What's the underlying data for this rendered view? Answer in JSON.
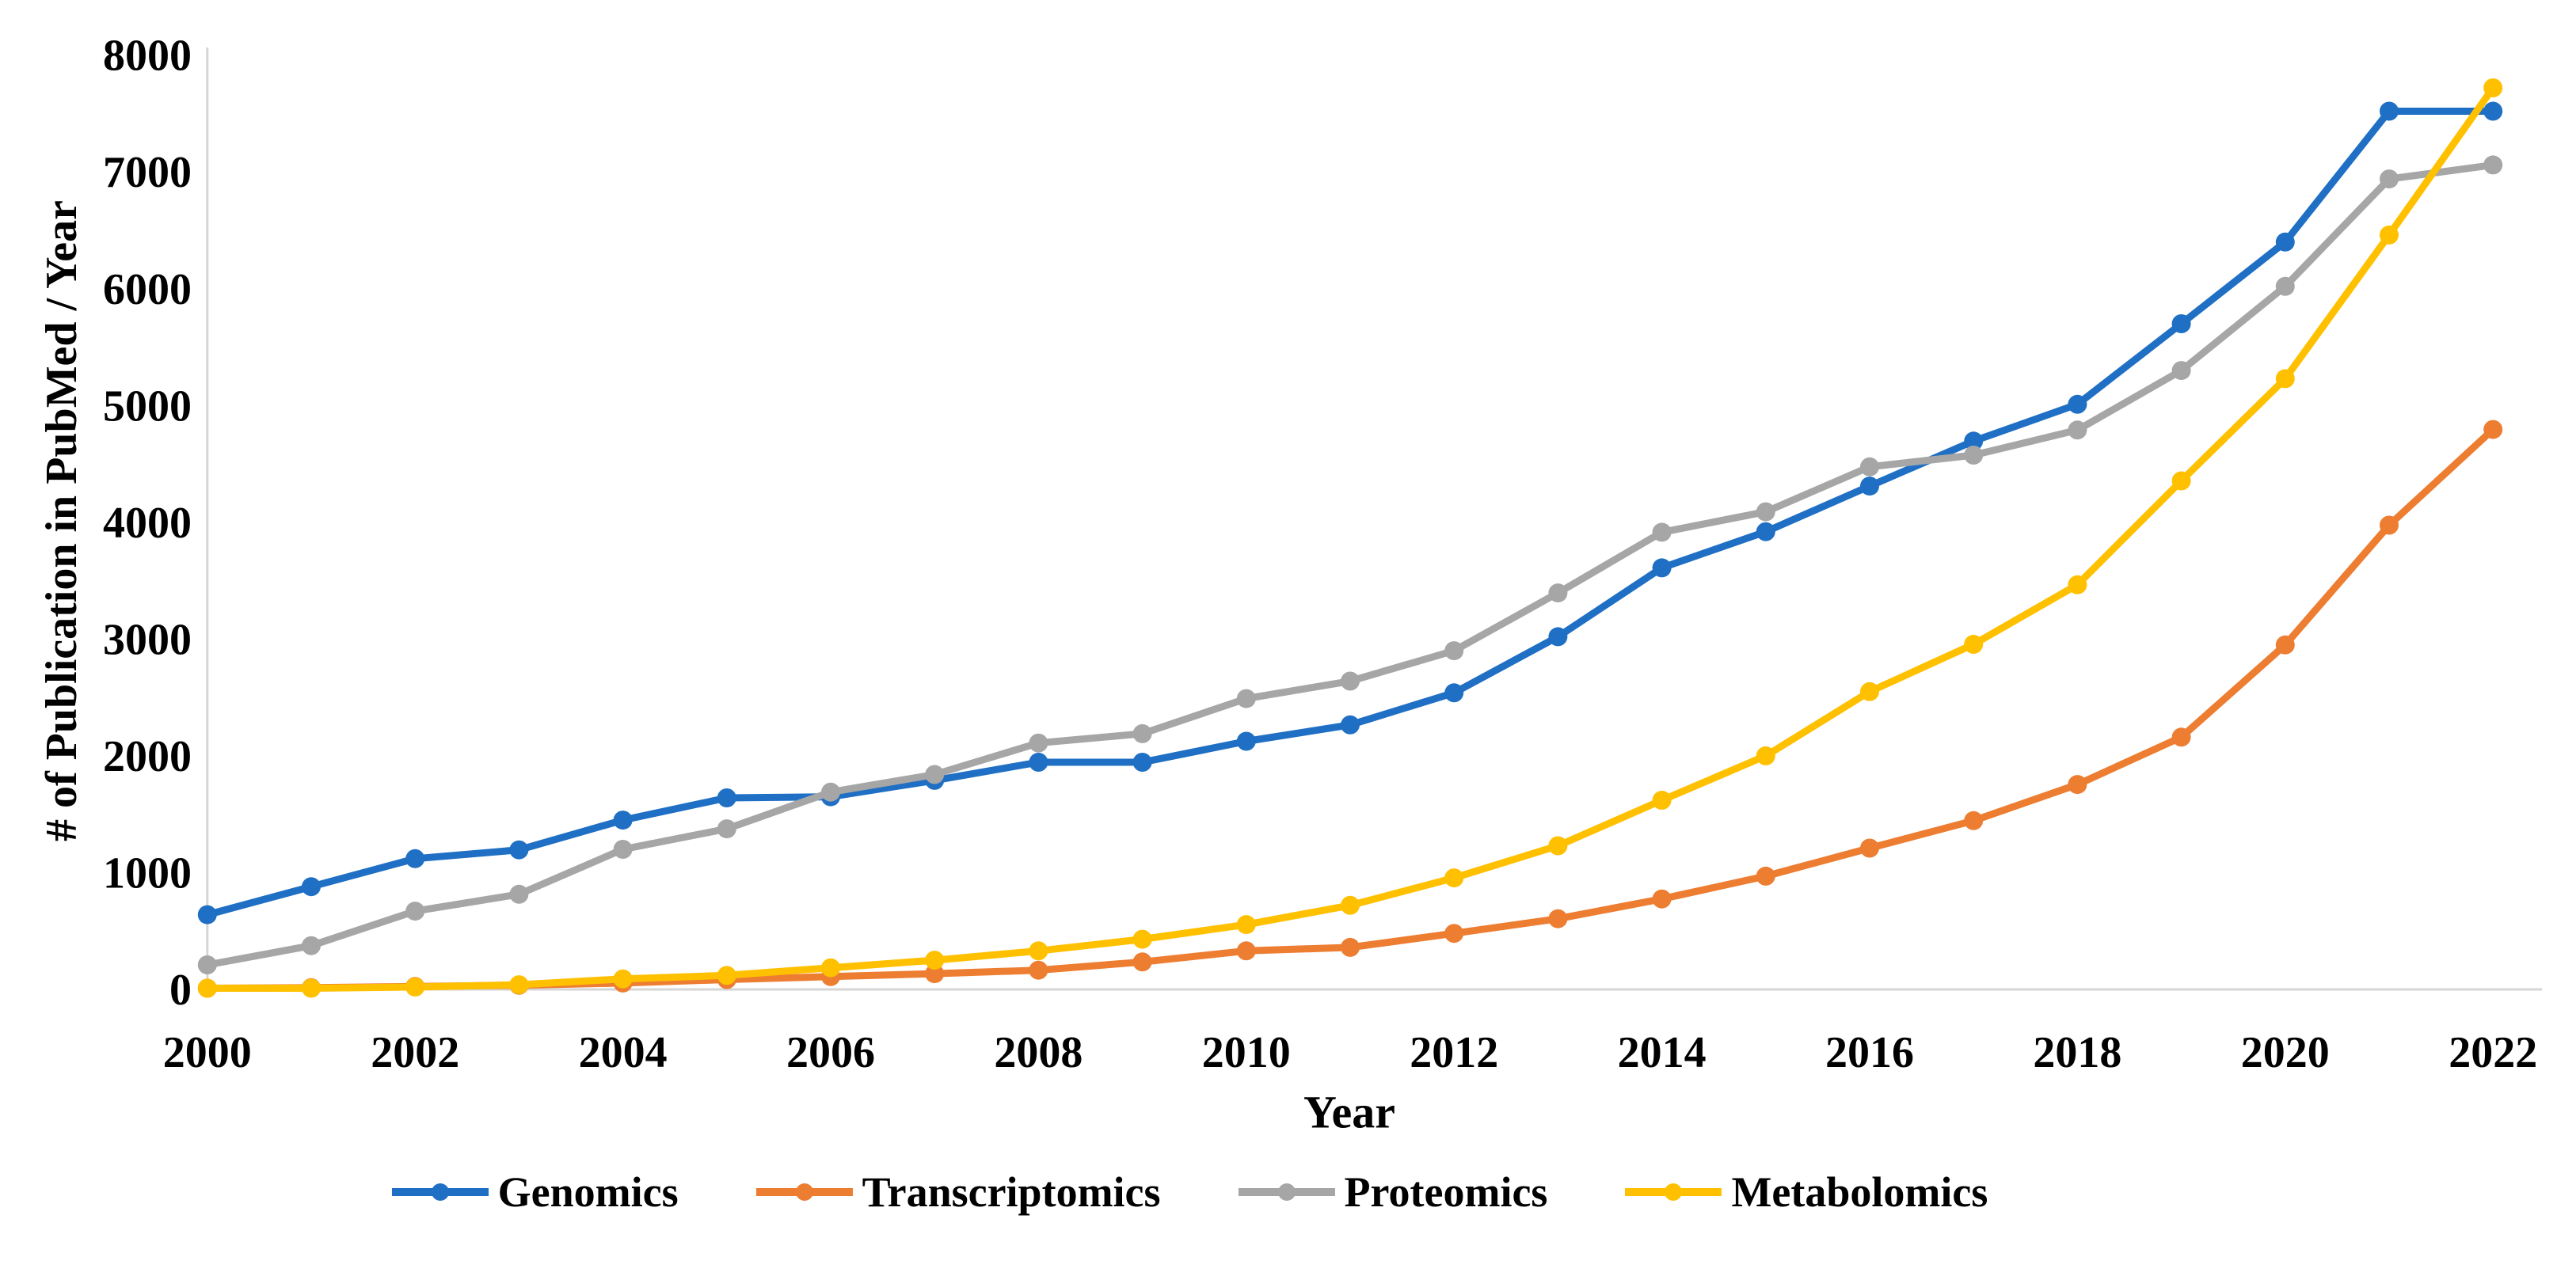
{
  "chart_data": {
    "type": "line",
    "title": "",
    "xlabel": "Year",
    "ylabel": "# of Publication in PubMed / Year",
    "x": [
      2000,
      2001,
      2002,
      2003,
      2004,
      2005,
      2006,
      2007,
      2008,
      2009,
      2010,
      2011,
      2012,
      2013,
      2014,
      2015,
      2016,
      2017,
      2018,
      2019,
      2020,
      2021,
      2022
    ],
    "x_tick_labels": [
      "2000",
      "2002",
      "2004",
      "2006",
      "2008",
      "2010",
      "2012",
      "2014",
      "2016",
      "2018",
      "2020",
      "2022"
    ],
    "y_ticks": [
      0,
      1000,
      2000,
      3000,
      4000,
      5000,
      6000,
      7000,
      8000
    ],
    "ylim": [
      0,
      8000
    ],
    "grid": false,
    "legend_position": "bottom",
    "axis_color": "#D6D6D6",
    "text_color": "#000000",
    "series": [
      {
        "name": "Genomics",
        "color": "#1F6FC4",
        "values": [
          640,
          880,
          1120,
          1195,
          1450,
          1640,
          1650,
          1790,
          1945,
          1945,
          2125,
          2265,
          2540,
          3020,
          3610,
          3920,
          4310,
          4695,
          5010,
          5700,
          6400,
          7520,
          7520
        ]
      },
      {
        "name": "Transcriptomics",
        "color": "#ED7D31",
        "values": [
          10,
          15,
          25,
          35,
          55,
          85,
          110,
          135,
          165,
          235,
          330,
          360,
          480,
          605,
          775,
          970,
          1210,
          1445,
          1755,
          2160,
          2950,
          3975,
          4795
        ]
      },
      {
        "name": "Proteomics",
        "color": "#A6A6A6",
        "values": [
          210,
          375,
          670,
          815,
          1200,
          1375,
          1690,
          1840,
          2110,
          2190,
          2490,
          2640,
          2900,
          3395,
          3915,
          4090,
          4475,
          4575,
          4790,
          5300,
          6020,
          6940,
          7060
        ]
      },
      {
        "name": "Metabolomics",
        "color": "#FFC000",
        "values": [
          10,
          10,
          20,
          40,
          90,
          120,
          185,
          250,
          330,
          430,
          555,
          720,
          955,
          1230,
          1620,
          2000,
          2550,
          2955,
          3465,
          4355,
          5230,
          6460,
          7720
        ]
      }
    ]
  }
}
